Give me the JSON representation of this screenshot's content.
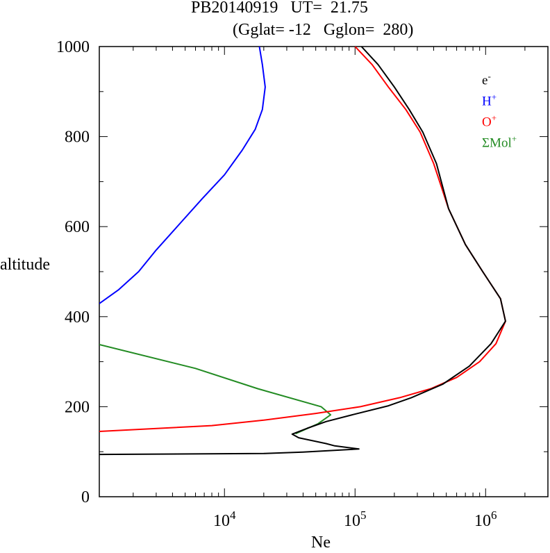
{
  "title": "PB20140919   UT=  21.75",
  "subtitle": "(Gglat= -12   Gglon=  280)",
  "xlabel": "Ne",
  "ylabel": "altitude",
  "chart_data": {
    "type": "line",
    "xscale": "log",
    "xlim": [
      1100,
      3000000
    ],
    "ylim": [
      0,
      1000
    ],
    "x_ticks": [
      {
        "value": 10000,
        "base": "10",
        "exp": "4"
      },
      {
        "value": 100000,
        "base": "10",
        "exp": "5"
      },
      {
        "value": 1000000,
        "base": "10",
        "exp": "6"
      }
    ],
    "y_ticks": [
      0,
      200,
      400,
      600,
      800,
      1000
    ],
    "legend_position": "top-right",
    "series": [
      {
        "name": "e",
        "sup": "-",
        "color": "#000000",
        "points": [
          [
            1100,
            94
          ],
          [
            20000,
            96
          ],
          [
            40000,
            99
          ],
          [
            107000,
            106
          ],
          [
            70000,
            113
          ],
          [
            60000,
            118
          ],
          [
            37000,
            131
          ],
          [
            33000,
            139
          ],
          [
            43000,
            152
          ],
          [
            60000,
            167
          ],
          [
            95000,
            182
          ],
          [
            180000,
            202
          ],
          [
            270000,
            220
          ],
          [
            470000,
            250
          ],
          [
            750000,
            290
          ],
          [
            1100000,
            340
          ],
          [
            1420000,
            390
          ],
          [
            1300000,
            440
          ],
          [
            950000,
            500
          ],
          [
            700000,
            560
          ],
          [
            520000,
            640
          ],
          [
            420000,
            740
          ],
          [
            330000,
            810
          ],
          [
            260000,
            860
          ],
          [
            200000,
            910
          ],
          [
            150000,
            960
          ],
          [
            112000,
            1000
          ]
        ]
      },
      {
        "name": "H",
        "sup": "+",
        "color": "#0000ff",
        "points": [
          [
            1100,
            429
          ],
          [
            1550,
            460
          ],
          [
            2200,
            500
          ],
          [
            3000,
            548
          ],
          [
            4500,
            605
          ],
          [
            6800,
            663
          ],
          [
            10000,
            715
          ],
          [
            13700,
            770
          ],
          [
            17200,
            816
          ],
          [
            19500,
            860
          ],
          [
            20500,
            910
          ],
          [
            19500,
            960
          ],
          [
            18500,
            1000
          ]
        ]
      },
      {
        "name": "O",
        "sup": "+",
        "color": "#ff0000",
        "points": [
          [
            1100,
            145
          ],
          [
            8000,
            158
          ],
          [
            20000,
            170
          ],
          [
            50000,
            185
          ],
          [
            110000,
            200
          ],
          [
            220000,
            220
          ],
          [
            380000,
            240
          ],
          [
            600000,
            265
          ],
          [
            900000,
            300
          ],
          [
            1200000,
            340
          ],
          [
            1420000,
            390
          ],
          [
            1300000,
            440
          ],
          [
            950000,
            500
          ],
          [
            700000,
            560
          ],
          [
            520000,
            640
          ],
          [
            400000,
            740
          ],
          [
            315000,
            810
          ],
          [
            245000,
            860
          ],
          [
            180000,
            910
          ],
          [
            135000,
            960
          ],
          [
            100000,
            1000
          ]
        ]
      },
      {
        "name": "ΣMol",
        "sup": "+",
        "color": "#228b22",
        "points": [
          [
            1100,
            338
          ],
          [
            6000,
            285
          ],
          [
            18000,
            240
          ],
          [
            55000,
            200
          ],
          [
            65000,
            182
          ],
          [
            52000,
            162
          ],
          [
            35000,
            140
          ]
        ]
      }
    ]
  }
}
